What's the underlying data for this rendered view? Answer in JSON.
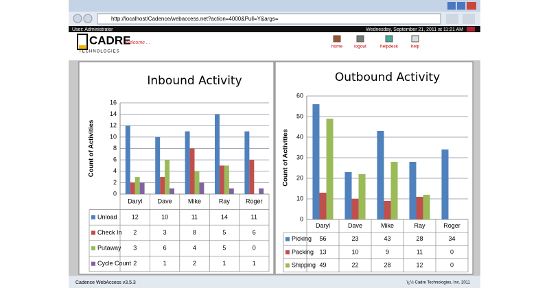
{
  "browser": {
    "url": "http://localhost/Cadence/webaccess.net?action=4000&Pull=Y&args=",
    "status": "Cadence WebAccess v3.5.3",
    "copyright": "ï¿½ Cadre Technologies, Inc. 2011"
  },
  "header": {
    "user": "User: Administrator",
    "datetime": "Wednesday, September 21, 2011 at 11:21 AM",
    "logo": "CADRE",
    "logo_sub": "TECHNOLOGIES",
    "welcome": "Welcome ...",
    "nav": [
      "home",
      "logout",
      "helpdesk",
      "help"
    ]
  },
  "chart_data": [
    {
      "type": "bar",
      "title": "Inbound Activity",
      "y_label": "Count of Activities",
      "categories": [
        "Daryl",
        "Dave",
        "Mike",
        "Ray",
        "Roger"
      ],
      "series": [
        {
          "name": "Unload",
          "color": "#4f81bd",
          "values": [
            12,
            10,
            11,
            14,
            11
          ]
        },
        {
          "name": "Check In",
          "color": "#c0504d",
          "values": [
            2,
            3,
            8,
            5,
            6
          ]
        },
        {
          "name": "Putaway",
          "color": "#9bbb59",
          "values": [
            3,
            6,
            4,
            5,
            0
          ]
        },
        {
          "name": "Cycle Count",
          "color": "#8064a2",
          "values": [
            2,
            1,
            2,
            1,
            1
          ]
        }
      ],
      "ylim": [
        0,
        16
      ],
      "yticks": [
        0,
        2,
        4,
        6,
        8,
        10,
        12,
        14,
        16
      ],
      "grid": true
    },
    {
      "type": "bar",
      "title": "Outbound Activity",
      "y_label": "Count of Activities",
      "categories": [
        "Daryl",
        "Dave",
        "Mike",
        "Ray",
        "Roger"
      ],
      "series": [
        {
          "name": "Picking",
          "color": "#4f81bd",
          "values": [
            56,
            23,
            43,
            28,
            34
          ]
        },
        {
          "name": "Packing",
          "color": "#c0504d",
          "values": [
            13,
            10,
            9,
            11,
            0
          ]
        },
        {
          "name": "Shipping",
          "color": "#9bbb59",
          "values": [
            49,
            22,
            28,
            12,
            0
          ]
        }
      ],
      "ylim": [
        0,
        60
      ],
      "yticks": [
        0,
        10,
        20,
        30,
        40,
        50,
        60
      ],
      "grid": true
    }
  ]
}
